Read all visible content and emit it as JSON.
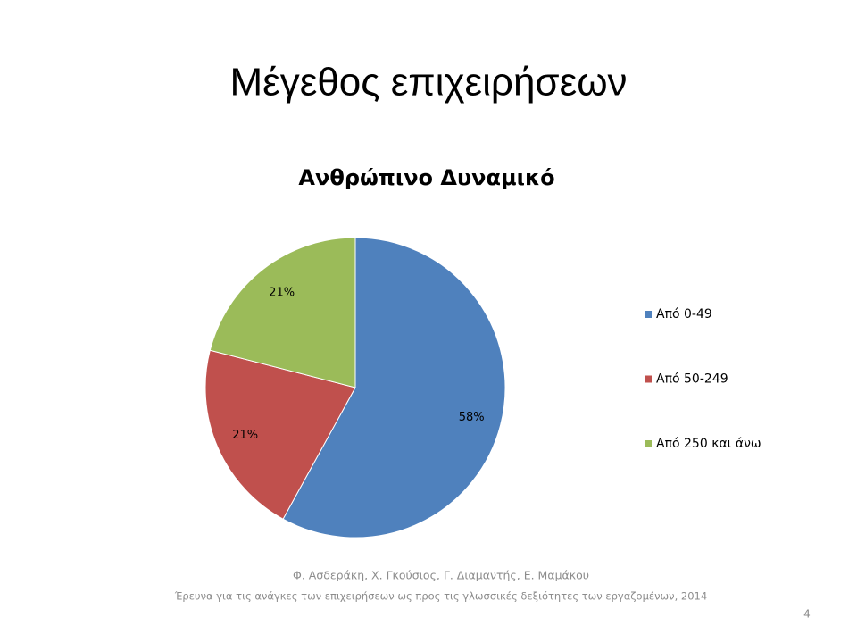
{
  "slide_title": "Μέγεθος επιχειρήσεων",
  "chart_data": {
    "type": "pie",
    "title": "Ανθρώπινο Δυναμικό",
    "categories": [
      "Από 0-49",
      "Από 50-249",
      "Από 250 και άνω"
    ],
    "values": [
      58,
      21,
      21
    ],
    "value_labels": [
      "58%",
      "21%",
      "21%"
    ],
    "colors": [
      "#4f81bd",
      "#c0504d",
      "#9bbb59"
    ],
    "legend": "right"
  },
  "footer": [
    "Φ. Ασδεράκη, Χ. Γκούσιος, Γ. Διαμαντής, Ε. Μαμάκου",
    "Έρευνα για τις ανάγκες των επιχειρήσεων ως προς τις γλωσσικές δεξιότητες των εργαζομένων, 2014"
  ],
  "page_number": "4"
}
